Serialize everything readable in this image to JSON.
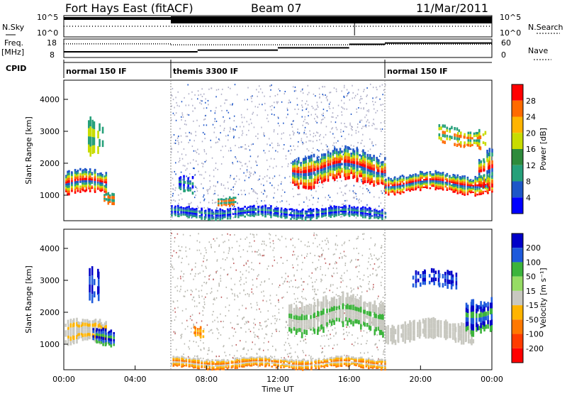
{
  "header": {
    "station": "Fort Hays East (fitACF)",
    "beam": "Beam 07",
    "date": "11/Mar/2011"
  },
  "chart_data": [
    {
      "type": "line",
      "panel": "noise",
      "left_label": "N.Sky",
      "right_label": "N.Search",
      "yticks": [
        "10^5",
        "10^0"
      ],
      "right_yticks": [
        "10^5",
        "10^0"
      ]
    },
    {
      "type": "line",
      "panel": "freq-nave",
      "left_label": "Freq.",
      "left_unit": "[MHz]",
      "right_label": "Nave",
      "yticks": [
        "18",
        "8"
      ],
      "right_yticks": [
        "60",
        "0"
      ],
      "freq_segments": [
        [
          0,
          6,
          16.5
        ],
        [
          6,
          18,
          15.7
        ],
        [
          18,
          24,
          16.2
        ]
      ],
      "nave_segments": [
        [
          0,
          7.5,
          18
        ],
        [
          7.5,
          12,
          25
        ],
        [
          12,
          16,
          35
        ],
        [
          16,
          18,
          50
        ],
        [
          18,
          24,
          55
        ]
      ]
    },
    {
      "type": "table",
      "panel": "cpid",
      "label": "CPID",
      "segments": [
        {
          "start": 0,
          "end": 6,
          "name": "normal 150 IF"
        },
        {
          "start": 6,
          "end": 18,
          "name": "themis 3300 IF"
        },
        {
          "start": 18,
          "end": 24,
          "name": "normal 150 IF"
        }
      ]
    },
    {
      "type": "heatmap",
      "panel": "power",
      "ylabel": "Slant Range [km]",
      "xlim": [
        0,
        24
      ],
      "ylim": [
        200,
        4600
      ],
      "yticks": [
        1000,
        2000,
        3000,
        4000
      ],
      "colorbar": {
        "label": "Power [dB]",
        "ticks": [
          "28",
          "24",
          "20",
          "16",
          "12",
          "8",
          "4"
        ],
        "colors": [
          "#ff0000",
          "#ff6a00",
          "#ffb400",
          "#c8dc00",
          "#2e8b3c",
          "#26a07a",
          "#1e56c8",
          "#0000ff"
        ]
      },
      "blobs": [
        {
          "t0": 0,
          "t1": 2.4,
          "r0": 900,
          "r1": 1800,
          "level": "high"
        },
        {
          "t0": 1.2,
          "t1": 2.2,
          "r0": 2000,
          "r1": 3300,
          "level": "mid"
        },
        {
          "t0": 13,
          "t1": 18,
          "r0": 1300,
          "r1": 2400,
          "level": "high"
        },
        {
          "t0": 18,
          "t1": 24,
          "r0": 1000,
          "r1": 1700,
          "level": "high"
        },
        {
          "t0": 21,
          "t1": 23.5,
          "r0": 2600,
          "r1": 3200,
          "level": "mid"
        }
      ]
    },
    {
      "type": "heatmap",
      "panel": "velocity",
      "ylabel": "Slant Range [km]",
      "xlabel": "Time UT",
      "xlim": [
        0,
        24
      ],
      "ylim": [
        200,
        4600
      ],
      "yticks": [
        1000,
        2000,
        3000,
        4000
      ],
      "xticks": [
        "00:00",
        "04:00",
        "08:00",
        "12:00",
        "16:00",
        "20:00",
        "00:00"
      ],
      "colorbar": {
        "label": "Velocity [m s⁻¹]",
        "ticks": [
          "200",
          "100",
          "50",
          "15",
          "-15",
          "-50",
          "-100",
          "-200"
        ],
        "colors": [
          "#0000c8",
          "#1e5adc",
          "#3cb43c",
          "#96dc64",
          "#c8c8c0",
          "#ffb400",
          "#ff7800",
          "#ff3c00",
          "#ff0000"
        ]
      }
    }
  ]
}
